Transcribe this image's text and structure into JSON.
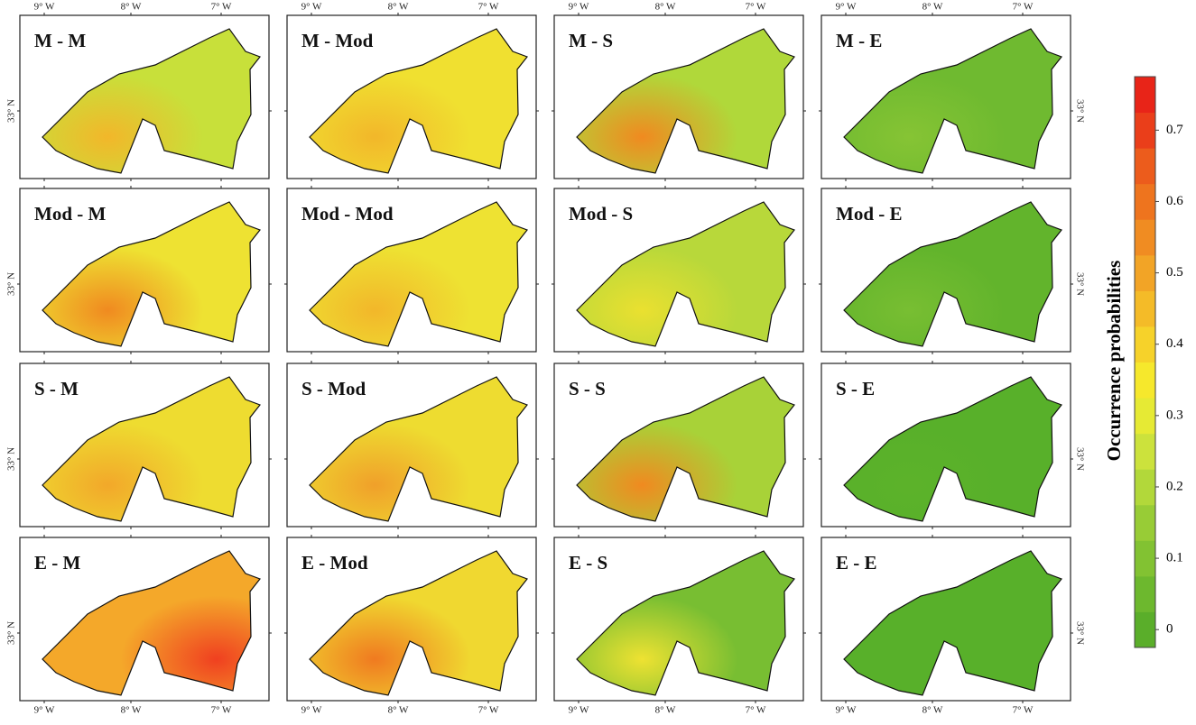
{
  "panels": [
    {
      "label": "M - M",
      "colors": [
        "#c8e03a",
        "#f2b72a"
      ]
    },
    {
      "label": "M - Mod",
      "colors": [
        "#f0e030",
        "#f2b72a"
      ]
    },
    {
      "label": "M - S",
      "colors": [
        "#b0d83a",
        "#f08a20"
      ]
    },
    {
      "label": "M - E",
      "colors": [
        "#6fba30",
        "#86c434"
      ]
    },
    {
      "label": "Mod - M",
      "colors": [
        "#eee232",
        "#f08a20"
      ]
    },
    {
      "label": "Mod - Mod",
      "colors": [
        "#eee232",
        "#f2b72a"
      ]
    },
    {
      "label": "Mod - S",
      "colors": [
        "#b8d83a",
        "#eae030"
      ]
    },
    {
      "label": "Mod - E",
      "colors": [
        "#62b42c",
        "#78be32"
      ]
    },
    {
      "label": "S - M",
      "colors": [
        "#eedc30",
        "#f2a82a"
      ]
    },
    {
      "label": "S - Mod",
      "colors": [
        "#eedc30",
        "#f0a02a"
      ]
    },
    {
      "label": "S - S",
      "colors": [
        "#a8d238",
        "#f08a20"
      ]
    },
    {
      "label": "S - E",
      "colors": [
        "#58b02a",
        "#5cb22a"
      ]
    },
    {
      "label": "E - M",
      "colors": [
        "#f4a82a",
        "#f04020"
      ]
    },
    {
      "label": "E - Mod",
      "colors": [
        "#f0d830",
        "#f07a20"
      ]
    },
    {
      "label": "E - S",
      "colors": [
        "#78be32",
        "#eee232"
      ]
    },
    {
      "label": "E - E",
      "colors": [
        "#58b02a",
        "#58b02a"
      ]
    }
  ],
  "lon_labels": [
    "9° W",
    "8° W",
    "7° W"
  ],
  "lat_label": "33° N",
  "colorbar": {
    "title": "Occurrence probabilities",
    "lim": [
      0,
      0.8
    ],
    "ticks": [
      0,
      0.1,
      0.2,
      0.3,
      0.4,
      0.5,
      0.6,
      0.7
    ],
    "colors": [
      "#5aae2a",
      "#6db82e",
      "#82c232",
      "#98cc36",
      "#b2d83a",
      "#cce23c",
      "#e6ea34",
      "#f6e82c",
      "#f6d22a",
      "#f4bb28",
      "#f2a426",
      "#f08c22",
      "#ee741e",
      "#ec5c1c",
      "#ea3e1a",
      "#e82418"
    ]
  }
}
